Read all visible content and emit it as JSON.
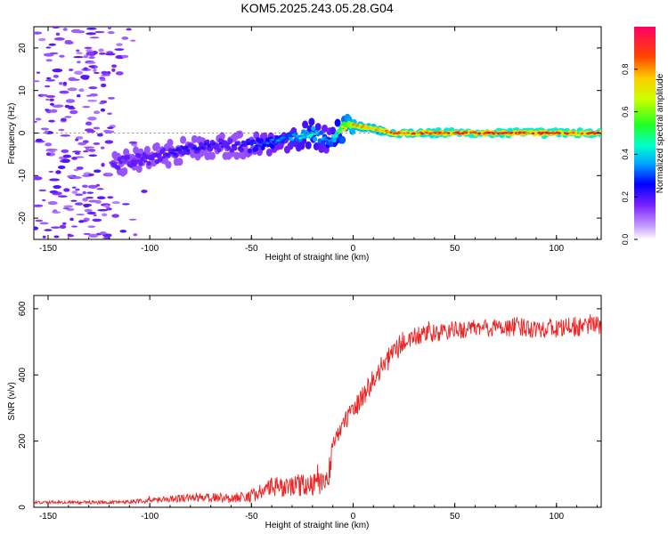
{
  "title": "KOM5.2025.243.05.28.G04",
  "colors": {
    "snr_line": "#ee2222",
    "axis": "#000000"
  },
  "chart_data": [
    {
      "type": "heatmap",
      "xlabel": "Height of straight line (km)",
      "ylabel": "Frequency (Hz)",
      "xlim": [
        -157,
        122
      ],
      "ylim": [
        -25,
        25
      ],
      "x_ticks": [
        -150,
        -100,
        -50,
        0,
        50,
        100
      ],
      "y_ticks": [
        -20,
        -10,
        0,
        10,
        20
      ],
      "colorbar": {
        "label": "Normalized spectral amplitude",
        "range": [
          0,
          1
        ],
        "ticks": [
          "0.0",
          "0.2",
          "0.4",
          "0.6",
          "0.8"
        ]
      },
      "ridge": {
        "description_points_x": [
          -115,
          -100,
          -85,
          -70,
          -60,
          -50,
          -40,
          -30,
          -20,
          -12,
          -5,
          0,
          10,
          20,
          50,
          100,
          122
        ],
        "description_points_freq": [
          -7,
          -6,
          -4,
          -3,
          -3,
          -3,
          -2,
          -1,
          0,
          -2,
          1,
          2,
          1,
          0,
          0,
          0,
          0
        ],
        "amplitude": [
          0.15,
          0.2,
          0.25,
          0.25,
          0.2,
          0.3,
          0.35,
          0.4,
          0.5,
          0.35,
          0.7,
          0.85,
          0.85,
          0.9,
          0.95,
          0.95,
          0.95
        ]
      }
    },
    {
      "type": "line",
      "xlabel": "Height of straight line (km)",
      "ylabel": "SNR (v/v)",
      "xlim": [
        -157,
        122
      ],
      "ylim": [
        0,
        640
      ],
      "x_ticks": [
        -150,
        -100,
        -50,
        0,
        50,
        100
      ],
      "y_ticks": [
        0,
        200,
        400,
        600
      ],
      "trend_x": [
        -157,
        -120,
        -100,
        -80,
        -60,
        -50,
        -40,
        -20,
        -12,
        -10,
        -5,
        0,
        5,
        10,
        15,
        20,
        25,
        30,
        40,
        50,
        60,
        80,
        100,
        122
      ],
      "trend_y": [
        15,
        15,
        20,
        30,
        28,
        35,
        60,
        70,
        75,
        200,
        250,
        290,
        340,
        385,
        430,
        470,
        500,
        515,
        525,
        535,
        540,
        545,
        540,
        550
      ],
      "noise": [
        4,
        5,
        8,
        14,
        15,
        20,
        30,
        35,
        35,
        30,
        30,
        30,
        35,
        35,
        35,
        35,
        35,
        30,
        28,
        28,
        28,
        30,
        30,
        30
      ]
    }
  ]
}
